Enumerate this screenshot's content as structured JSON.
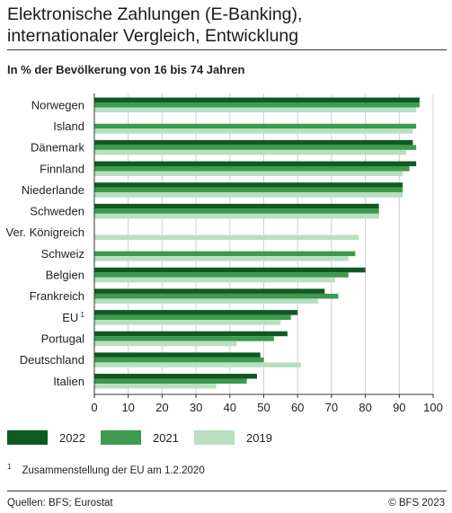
{
  "header": {
    "title_line1": "Elektronische Zahlungen (E-Banking),",
    "title_line2": "internationaler Vergleich, Entwicklung",
    "subtitle": "In % der Bevölkerung von 16 bis 74 Jahren"
  },
  "chart_data": {
    "type": "bar",
    "orientation": "horizontal",
    "categories": [
      "Norwegen",
      "Island",
      "Dänemark",
      "Finnland",
      "Niederlande",
      "Schweden",
      "Ver. Königreich",
      "Schweiz",
      "Belgien",
      "Frankreich",
      "EU",
      "Portugal",
      "Deutschland",
      "Italien"
    ],
    "category_footnotes": {
      "EU": "1"
    },
    "series": [
      {
        "name": "2022",
        "color": "#0f5a23",
        "values": [
          96,
          null,
          94,
          95,
          91,
          84,
          null,
          null,
          80,
          68,
          60,
          57,
          49,
          48
        ]
      },
      {
        "name": "2021",
        "color": "#3d9a4e",
        "values": [
          96,
          95,
          95,
          93,
          91,
          84,
          null,
          77,
          75,
          72,
          58,
          53,
          50,
          45
        ]
      },
      {
        "name": "2019",
        "color": "#b8dfc0",
        "values": [
          95,
          94,
          92,
          91,
          91,
          84,
          78,
          75,
          71,
          66,
          55,
          42,
          61,
          36
        ]
      }
    ],
    "xlim": [
      0,
      100
    ],
    "xticks": [
      0,
      10,
      20,
      30,
      40,
      50,
      60,
      70,
      80,
      90,
      100
    ],
    "grid": true,
    "legend": "bottom"
  },
  "footer": {
    "footnote_mark": "1",
    "footnote_text": "Zusammenstellung der EU am 1.2.2020",
    "source": "Quellen: BFS; Eurostat",
    "copyright": "© BFS 2023"
  }
}
